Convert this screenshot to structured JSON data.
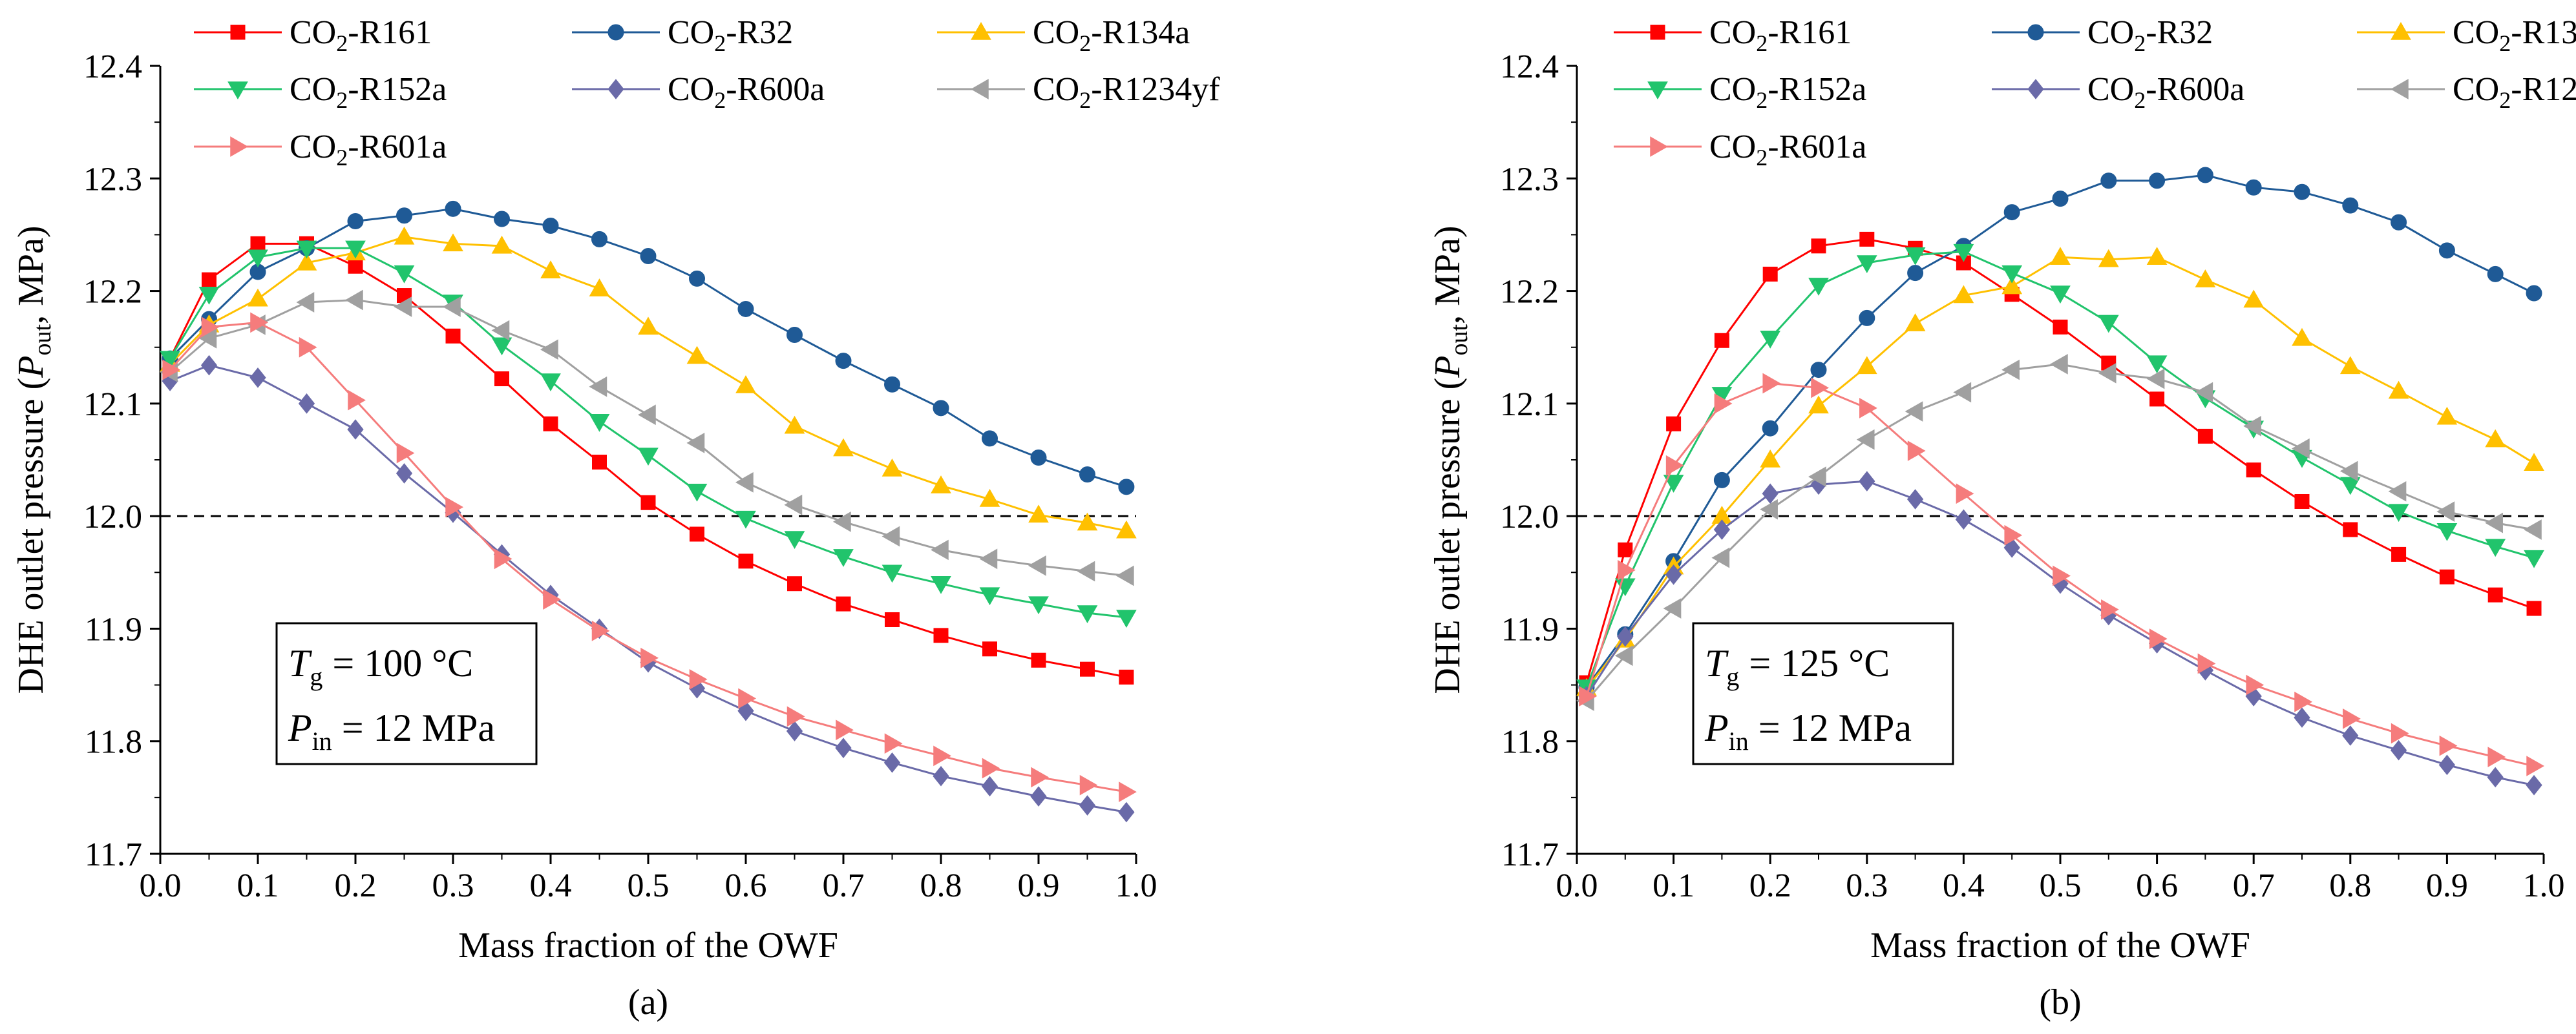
{
  "legend_names": [
    {
      "id": "r161",
      "main": "CO",
      "sub": "2",
      "tail": "-R161",
      "color": "#ff0000",
      "marker": "square"
    },
    {
      "id": "r32",
      "main": "CO",
      "sub": "2",
      "tail": "-R32",
      "color": "#1f5a96",
      "marker": "circle"
    },
    {
      "id": "r134a",
      "main": "CO",
      "sub": "2",
      "tail": "-R134a",
      "color": "#ffc000",
      "marker": "triangle-up"
    },
    {
      "id": "r152a",
      "main": "CO",
      "sub": "2",
      "tail": "-R152a",
      "color": "#21c46c",
      "marker": "triangle-down"
    },
    {
      "id": "r600a",
      "main": "CO",
      "sub": "2",
      "tail": "-R600a",
      "color": "#6a6aa8",
      "marker": "diamond"
    },
    {
      "id": "r1234yf",
      "main": "CO",
      "sub": "2",
      "tail": "-R1234yf",
      "color": "#a0a0a0",
      "marker": "triangle-left"
    },
    {
      "id": "r601a",
      "main": "CO",
      "sub": "2",
      "tail": "-R601a",
      "color": "#f57c7c",
      "marker": "triangle-right"
    }
  ],
  "chart_data": [
    {
      "type": "line",
      "panel_label": "(a)",
      "xlabel": "Mass fraction of the OWF",
      "ylabel": {
        "pre": "DHE outlet pressure (",
        "var": "P",
        "sub": "out",
        "post": ", MPa)"
      },
      "xlim": [
        0,
        1.0
      ],
      "ylim": [
        11.7,
        12.4
      ],
      "xticks": [
        "0.0",
        "0.1",
        "0.2",
        "0.3",
        "0.4",
        "0.5",
        "0.6",
        "0.7",
        "0.8",
        "0.9",
        "1.0"
      ],
      "yticks": [
        "11.7",
        "11.8",
        "11.9",
        "12.0",
        "12.1",
        "12.2",
        "12.3",
        "12.4"
      ],
      "reference_line": 12.0,
      "annotation": {
        "line1": {
          "var": "T",
          "sub": "g",
          "rest": " = 100 °C"
        },
        "line2": {
          "var": "P",
          "sub": "in",
          "rest": " = 12 MPa"
        }
      },
      "x": [
        0.01,
        0.05,
        0.1,
        0.15,
        0.2,
        0.25,
        0.3,
        0.35,
        0.4,
        0.45,
        0.5,
        0.55,
        0.6,
        0.65,
        0.7,
        0.75,
        0.8,
        0.85,
        0.9,
        0.95,
        0.99
      ],
      "series": [
        {
          "id": "r161",
          "values": [
            12.14,
            12.21,
            12.242,
            12.242,
            12.222,
            12.196,
            12.16,
            12.122,
            12.082,
            12.048,
            12.012,
            11.984,
            11.96,
            11.94,
            11.922,
            11.908,
            11.894,
            11.882,
            11.872,
            11.864,
            11.857
          ]
        },
        {
          "id": "r32",
          "values": [
            12.14,
            12.175,
            12.217,
            12.238,
            12.262,
            12.267,
            12.273,
            12.264,
            12.258,
            12.246,
            12.231,
            12.211,
            12.184,
            12.161,
            12.138,
            12.117,
            12.096,
            12.069,
            12.052,
            12.037,
            12.026
          ]
        },
        {
          "id": "r134a",
          "values": [
            12.135,
            12.17,
            12.193,
            12.225,
            12.234,
            12.248,
            12.242,
            12.24,
            12.218,
            12.202,
            12.168,
            12.142,
            12.116,
            12.08,
            12.06,
            12.042,
            12.027,
            12.015,
            12.001,
            11.994,
            11.987
          ]
        },
        {
          "id": "r152a",
          "values": [
            12.14,
            12.197,
            12.23,
            12.238,
            12.238,
            12.216,
            12.19,
            12.152,
            12.12,
            12.084,
            12.054,
            12.022,
            11.998,
            11.98,
            11.964,
            11.95,
            11.94,
            11.93,
            11.922,
            11.914,
            11.91
          ]
        },
        {
          "id": "r600a",
          "values": [
            12.12,
            12.134,
            12.123,
            12.1,
            12.077,
            12.038,
            12.003,
            11.966,
            11.93,
            11.9,
            11.87,
            11.847,
            11.827,
            11.809,
            11.794,
            11.781,
            11.769,
            11.76,
            11.751,
            11.743,
            11.737
          ]
        },
        {
          "id": "r1234yf",
          "values": [
            12.128,
            12.158,
            12.17,
            12.19,
            12.192,
            12.186,
            12.186,
            12.165,
            12.148,
            12.115,
            12.09,
            12.065,
            12.03,
            12.01,
            11.995,
            11.982,
            11.97,
            11.962,
            11.956,
            11.951,
            11.947
          ]
        },
        {
          "id": "r601a",
          "values": [
            12.13,
            12.168,
            12.172,
            12.15,
            12.103,
            12.056,
            12.008,
            11.962,
            11.926,
            11.898,
            11.874,
            11.855,
            11.838,
            11.822,
            11.81,
            11.798,
            11.787,
            11.776,
            11.768,
            11.761,
            11.755
          ]
        }
      ]
    },
    {
      "type": "line",
      "panel_label": "(b)",
      "xlabel": "Mass fraction of the OWF",
      "ylabel": {
        "pre": "DHE outlet pressure (",
        "var": "P",
        "sub": "out",
        "post": ", MPa)"
      },
      "xlim": [
        0,
        1.0
      ],
      "ylim": [
        11.7,
        12.4
      ],
      "xticks": [
        "0.0",
        "0.1",
        "0.2",
        "0.3",
        "0.4",
        "0.5",
        "0.6",
        "0.7",
        "0.8",
        "0.9",
        "1.0"
      ],
      "yticks": [
        "11.7",
        "11.8",
        "11.9",
        "12.0",
        "12.1",
        "12.2",
        "12.3",
        "12.4"
      ],
      "reference_line": 12.0,
      "annotation": {
        "line1": {
          "var": "T",
          "sub": "g",
          "rest": " = 125 °C"
        },
        "line2": {
          "var": "P",
          "sub": "in",
          "rest": " = 12 MPa"
        }
      },
      "x": [
        0.01,
        0.05,
        0.1,
        0.15,
        0.2,
        0.25,
        0.3,
        0.35,
        0.4,
        0.45,
        0.5,
        0.55,
        0.6,
        0.65,
        0.7,
        0.75,
        0.8,
        0.85,
        0.9,
        0.95,
        0.99
      ],
      "series": [
        {
          "id": "r161",
          "values": [
            11.852,
            11.97,
            12.082,
            12.156,
            12.215,
            12.24,
            12.246,
            12.238,
            12.225,
            12.197,
            12.168,
            12.136,
            12.104,
            12.071,
            12.041,
            12.013,
            11.988,
            11.966,
            11.946,
            11.93,
            11.918
          ]
        },
        {
          "id": "r32",
          "values": [
            11.848,
            11.895,
            11.96,
            12.032,
            12.078,
            12.13,
            12.176,
            12.216,
            12.24,
            12.27,
            12.282,
            12.298,
            12.298,
            12.303,
            12.292,
            12.288,
            12.276,
            12.261,
            12.236,
            12.215,
            12.198
          ]
        },
        {
          "id": "r134a",
          "values": [
            11.847,
            11.89,
            11.955,
            12.0,
            12.05,
            12.098,
            12.133,
            12.171,
            12.196,
            12.204,
            12.23,
            12.228,
            12.23,
            12.21,
            12.192,
            12.158,
            12.133,
            12.111,
            12.088,
            12.068,
            12.047
          ]
        },
        {
          "id": "r152a",
          "values": [
            11.848,
            11.938,
            12.03,
            12.108,
            12.158,
            12.205,
            12.225,
            12.232,
            12.235,
            12.216,
            12.198,
            12.172,
            12.136,
            12.105,
            12.078,
            12.052,
            12.028,
            12.004,
            11.987,
            11.973,
            11.963
          ]
        },
        {
          "id": "r600a",
          "values": [
            11.84,
            11.893,
            11.948,
            11.988,
            12.02,
            12.028,
            12.031,
            12.015,
            11.997,
            11.972,
            11.94,
            11.912,
            11.887,
            11.863,
            11.84,
            11.821,
            11.805,
            11.792,
            11.779,
            11.768,
            11.761
          ]
        },
        {
          "id": "r1234yf",
          "values": [
            11.836,
            11.876,
            11.918,
            11.963,
            12.006,
            12.035,
            12.068,
            12.093,
            12.11,
            12.13,
            12.135,
            12.127,
            12.122,
            12.11,
            12.08,
            12.06,
            12.04,
            12.022,
            12.004,
            11.994,
            11.988
          ]
        },
        {
          "id": "r601a",
          "values": [
            11.84,
            11.952,
            12.045,
            12.1,
            12.118,
            12.114,
            12.096,
            12.058,
            12.02,
            11.983,
            11.947,
            11.917,
            11.891,
            11.869,
            11.85,
            11.835,
            11.82,
            11.807,
            11.796,
            11.786,
            11.778
          ]
        }
      ]
    }
  ]
}
